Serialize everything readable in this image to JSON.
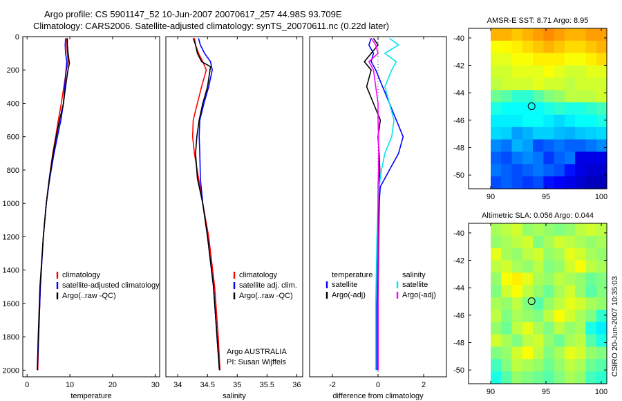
{
  "header": {
    "title_line1": "Argo profile: CS 5901147_52 10-Jun-2007 20070617_257 44.98S 93.709E",
    "title_line2": "Climatology: CARS2006. Satellite-adjusted climatology: synTS_20070611.nc (0.22d later)"
  },
  "footer": {
    "credit": "CSIRO 20-Jun-2007 10:35:03"
  },
  "chart_data": [
    {
      "id": "temperature",
      "type": "line",
      "xlabel": "temperature",
      "ylabel": "",
      "xlim": [
        -1,
        31
      ],
      "ylim": [
        2040,
        0
      ],
      "yreverse": true,
      "xticks": [
        0,
        10,
        20,
        30
      ],
      "xtick_labels": [
        "0",
        "10",
        "20",
        "30"
      ],
      "yticks": [
        0,
        200,
        400,
        600,
        800,
        1000,
        1200,
        1400,
        1600,
        1800,
        2000
      ],
      "ytick_labels": [
        "0",
        "200",
        "400",
        "600",
        "800",
        "1000",
        "1200",
        "1400",
        "1600",
        "1800",
        "2000"
      ],
      "legend": [
        "climatology",
        "satellite-adjusted climatology",
        "Argo(..raw -QC)"
      ],
      "legend_position": "lower-right",
      "series": [
        {
          "name": "climatology",
          "color": "#ff0000",
          "x": [
            9.3,
            9.3,
            9.4,
            9.6,
            9.2,
            8.6,
            8.0,
            7.3,
            6.7,
            6.0,
            5.2,
            4.5,
            3.8,
            3.1,
            2.7,
            2.5
          ],
          "y": [
            10,
            50,
            100,
            150,
            200,
            300,
            400,
            500,
            600,
            700,
            850,
            1000,
            1200,
            1500,
            1800,
            2000
          ]
        },
        {
          "name": "satellite-adjusted climatology",
          "color": "#0000ff",
          "x": [
            9.0,
            8.9,
            9.0,
            9.3,
            9.1,
            8.8,
            8.5,
            7.9,
            7.1,
            6.3,
            5.3,
            4.5,
            3.8,
            3.1,
            2.7,
            2.4
          ],
          "y": [
            10,
            50,
            100,
            150,
            200,
            300,
            400,
            500,
            600,
            700,
            850,
            1000,
            1200,
            1500,
            1800,
            2000
          ]
        },
        {
          "name": "Argo(..raw -QC)",
          "color": "#000000",
          "x": [
            9.4,
            9.4,
            9.6,
            9.9,
            9.5,
            9.0,
            8.5,
            7.6,
            6.8,
            6.1,
            5.2,
            4.5,
            3.8,
            3.0,
            2.6,
            2.4
          ],
          "y": [
            10,
            50,
            100,
            160,
            210,
            300,
            400,
            500,
            600,
            700,
            850,
            1000,
            1200,
            1500,
            1800,
            2000
          ]
        }
      ],
      "annotations": []
    },
    {
      "id": "salinity",
      "type": "line",
      "xlabel": "salinity",
      "ylabel": "",
      "xlim": [
        33.8,
        36.1
      ],
      "ylim": [
        2040,
        0
      ],
      "yreverse": true,
      "xticks": [
        34,
        34.5,
        35,
        35.5,
        36
      ],
      "xtick_labels": [
        "34",
        "34.5",
        "35",
        "35.5",
        "36"
      ],
      "yticks": [],
      "ytick_labels": [],
      "legend": [
        "climatology",
        "satellite adj. clim.",
        "Argo(..raw -QC)"
      ],
      "legend_position": "lower-right",
      "series": [
        {
          "name": "climatology",
          "color": "#ff0000",
          "x": [
            34.28,
            34.3,
            34.35,
            34.42,
            34.48,
            34.4,
            34.33,
            34.26,
            34.25,
            34.28,
            34.35,
            34.42,
            34.52,
            34.62,
            34.68,
            34.71
          ],
          "y": [
            10,
            50,
            100,
            150,
            200,
            300,
            400,
            500,
            600,
            700,
            850,
            1000,
            1200,
            1500,
            1800,
            2000
          ]
        },
        {
          "name": "satellite adj. clim.",
          "color": "#0000ff",
          "x": [
            34.35,
            34.38,
            34.45,
            34.55,
            34.58,
            34.52,
            34.44,
            34.37,
            34.36,
            34.37,
            34.38,
            34.42,
            34.5,
            34.6,
            34.66,
            34.7
          ],
          "y": [
            10,
            50,
            100,
            150,
            200,
            300,
            400,
            500,
            600,
            700,
            850,
            1000,
            1200,
            1500,
            1800,
            2000
          ]
        },
        {
          "name": "Argo(..raw -QC)",
          "color": "#000000",
          "x": [
            34.26,
            34.3,
            34.33,
            34.4,
            34.55,
            34.5,
            34.42,
            34.36,
            34.32,
            34.3,
            34.33,
            34.42,
            34.5,
            34.6,
            34.66,
            34.7
          ],
          "y": [
            10,
            50,
            100,
            150,
            180,
            300,
            400,
            500,
            600,
            700,
            850,
            1000,
            1200,
            1500,
            1800,
            2000
          ]
        }
      ],
      "annotations": [
        "Argo AUSTRALIA",
        "PI: Susan Wijffels"
      ]
    },
    {
      "id": "difference",
      "type": "line",
      "xlabel": "difference from climatology",
      "ylabel": "",
      "xlim": [
        -3,
        3
      ],
      "ylim": [
        2040,
        0
      ],
      "yreverse": true,
      "xticks": [
        -2,
        0,
        2
      ],
      "xtick_labels": [
        "-2",
        "0",
        "2"
      ],
      "yticks": [],
      "ytick_labels": [],
      "legend_headers": [
        "temperature",
        "salinity"
      ],
      "legend": [
        "satellite",
        "Argo(-adj)",
        "satellite",
        "Argo(-adj)"
      ],
      "legend_position": "lower-center",
      "series": [
        {
          "name": "satellite",
          "group": "temperature",
          "color": "#0000ff",
          "x": [
            -0.3,
            -0.4,
            -0.2,
            -0.3,
            -0.1,
            0.2,
            0.5,
            0.8,
            1.1,
            0.9,
            0.5,
            0.1,
            0.05,
            0.0,
            -0.05,
            -0.05
          ],
          "y": [
            10,
            50,
            100,
            150,
            200,
            300,
            400,
            500,
            600,
            700,
            800,
            900,
            1000,
            1200,
            1600,
            2000
          ]
        },
        {
          "name": "Argo(-adj)",
          "group": "temperature",
          "color": "#000000",
          "x": [
            -0.2,
            0.0,
            -0.3,
            -0.6,
            -0.3,
            -0.5,
            -0.2,
            0.1,
            0.0,
            0.05,
            0.08,
            0.05,
            0.05,
            0.03,
            0.0,
            0.0
          ],
          "y": [
            10,
            50,
            100,
            150,
            200,
            300,
            400,
            500,
            600,
            700,
            800,
            900,
            1000,
            1200,
            1600,
            2000
          ]
        },
        {
          "name": "satellite",
          "group": "salinity",
          "color": "#00e5ee",
          "x": [
            0.5,
            0.9,
            0.3,
            0.8,
            0.6,
            0.3,
            0.5,
            0.7,
            0.6,
            0.3,
            0.15,
            0.05,
            0.0,
            -0.05,
            -0.1,
            -0.1
          ],
          "y": [
            10,
            50,
            100,
            150,
            200,
            300,
            400,
            500,
            600,
            700,
            800,
            900,
            1000,
            1200,
            1600,
            2000
          ]
        },
        {
          "name": "Argo(-adj)",
          "group": "salinity",
          "color": "#ff00ff",
          "x": [
            -0.3,
            -0.1,
            0.0,
            -0.4,
            -0.2,
            -0.1,
            0.0,
            0.0,
            0.02,
            0.03,
            0.02,
            0.0,
            0.0,
            0.0,
            0.0,
            0.0
          ],
          "y": [
            10,
            50,
            100,
            150,
            200,
            300,
            400,
            500,
            600,
            700,
            800,
            900,
            1000,
            1200,
            1600,
            2000
          ]
        }
      ],
      "annotations": []
    },
    {
      "id": "sst-map",
      "type": "heatmap",
      "title": "AMSR-E SST: 8.71 Argo: 8.95",
      "xlim": [
        88,
        100.5
      ],
      "ylim": [
        -51,
        -39.3
      ],
      "xticks": [
        90,
        95,
        100
      ],
      "xtick_labels": [
        "90",
        "95",
        "100"
      ],
      "yticks": [
        -40,
        -42,
        -44,
        -46,
        -48,
        -50
      ],
      "ytick_labels": [
        "-40",
        "-42",
        "-44",
        "-46",
        "-48",
        "-50"
      ],
      "data_extent": {
        "x": [
          90,
          100.5
        ],
        "y": [
          -51,
          -39.3
        ]
      },
      "colormap": "jet",
      "value_range": [
        0,
        1
      ],
      "grid": [
        [
          0.7,
          0.7,
          0.68,
          0.7,
          0.72,
          0.74,
          0.72,
          0.7,
          0.7,
          0.72,
          0.72
        ],
        [
          0.62,
          0.63,
          0.64,
          0.66,
          0.68,
          0.7,
          0.68,
          0.66,
          0.66,
          0.68,
          0.7
        ],
        [
          0.6,
          0.6,
          0.62,
          0.62,
          0.64,
          0.64,
          0.64,
          0.62,
          0.62,
          0.64,
          0.66
        ],
        [
          0.58,
          0.58,
          0.6,
          0.6,
          0.6,
          0.62,
          0.6,
          0.58,
          0.58,
          0.6,
          0.6
        ],
        [
          0.56,
          0.58,
          0.58,
          0.58,
          0.6,
          0.58,
          0.58,
          0.56,
          0.58,
          0.58,
          0.58
        ],
        [
          0.48,
          0.46,
          0.42,
          0.42,
          0.46,
          0.5,
          0.52,
          0.56,
          0.56,
          0.56,
          0.58
        ],
        [
          0.4,
          0.38,
          0.38,
          0.38,
          0.38,
          0.4,
          0.42,
          0.4,
          0.4,
          0.42,
          0.44
        ],
        [
          0.36,
          0.36,
          0.36,
          0.38,
          0.38,
          0.36,
          0.34,
          0.36,
          0.38,
          0.38,
          0.4
        ],
        [
          0.34,
          0.33,
          0.28,
          0.3,
          0.33,
          0.33,
          0.31,
          0.3,
          0.32,
          0.33,
          0.34
        ],
        [
          0.26,
          0.24,
          0.3,
          0.28,
          0.2,
          0.22,
          0.24,
          0.22,
          0.22,
          0.24,
          0.26
        ],
        [
          0.22,
          0.2,
          0.24,
          0.26,
          0.24,
          0.18,
          0.22,
          0.24,
          0.1,
          0.1,
          0.1
        ],
        [
          0.24,
          0.22,
          0.2,
          0.22,
          0.24,
          0.22,
          0.2,
          0.14,
          0.1,
          0.08,
          0.08
        ],
        [
          0.2,
          0.22,
          0.2,
          0.18,
          0.2,
          0.14,
          0.12,
          0.1,
          0.08,
          0.06,
          0.06
        ]
      ],
      "marker": {
        "lon": 93.7,
        "lat": -44.98
      }
    },
    {
      "id": "sla-map",
      "type": "heatmap",
      "title": "Altimetric SLA: 0.056 Argo: 0.044",
      "xlim": [
        88,
        100.5
      ],
      "ylim": [
        -51,
        -39.3
      ],
      "xticks": [
        90,
        95,
        100
      ],
      "xtick_labels": [
        "90",
        "95",
        "100"
      ],
      "yticks": [
        -40,
        -42,
        -44,
        -46,
        -48,
        -50
      ],
      "ytick_labels": [
        "-40",
        "-42",
        "-44",
        "-46",
        "-48",
        "-50"
      ],
      "data_extent": {
        "x": [
          90,
          100.5
        ],
        "y": [
          -51,
          -39.3
        ]
      },
      "colormap": "jet",
      "value_range": [
        0,
        1
      ],
      "grid": [
        [
          0.54,
          0.56,
          0.58,
          0.52,
          0.54,
          0.52,
          0.5,
          0.52,
          0.56,
          0.58,
          0.56
        ],
        [
          0.52,
          0.54,
          0.56,
          0.58,
          0.5,
          0.54,
          0.58,
          0.56,
          0.54,
          0.52,
          0.54
        ],
        [
          0.6,
          0.54,
          0.52,
          0.56,
          0.58,
          0.52,
          0.54,
          0.6,
          0.58,
          0.54,
          0.52
        ],
        [
          0.56,
          0.58,
          0.54,
          0.52,
          0.56,
          0.5,
          0.52,
          0.58,
          0.62,
          0.56,
          0.54
        ],
        [
          0.52,
          0.62,
          0.64,
          0.6,
          0.54,
          0.52,
          0.56,
          0.54,
          0.52,
          0.48,
          0.5
        ],
        [
          0.5,
          0.58,
          0.62,
          0.56,
          0.52,
          0.48,
          0.54,
          0.58,
          0.52,
          0.46,
          0.5
        ],
        [
          0.54,
          0.52,
          0.56,
          0.5,
          0.46,
          0.52,
          0.56,
          0.6,
          0.58,
          0.54,
          0.52
        ],
        [
          0.56,
          0.5,
          0.54,
          0.52,
          0.5,
          0.56,
          0.62,
          0.58,
          0.54,
          0.5,
          0.42
        ],
        [
          0.52,
          0.48,
          0.56,
          0.6,
          0.54,
          0.5,
          0.56,
          0.52,
          0.54,
          0.4,
          0.36
        ],
        [
          0.58,
          0.54,
          0.5,
          0.56,
          0.58,
          0.52,
          0.48,
          0.54,
          0.56,
          0.46,
          0.4
        ],
        [
          0.5,
          0.52,
          0.58,
          0.62,
          0.56,
          0.5,
          0.54,
          0.6,
          0.58,
          0.52,
          0.5
        ],
        [
          0.44,
          0.5,
          0.56,
          0.54,
          0.52,
          0.48,
          0.52,
          0.56,
          0.54,
          0.48,
          0.46
        ],
        [
          0.4,
          0.46,
          0.52,
          0.5,
          0.48,
          0.46,
          0.5,
          0.54,
          0.52,
          0.44,
          0.42
        ]
      ],
      "marker": {
        "lon": 93.7,
        "lat": -44.98
      }
    }
  ]
}
